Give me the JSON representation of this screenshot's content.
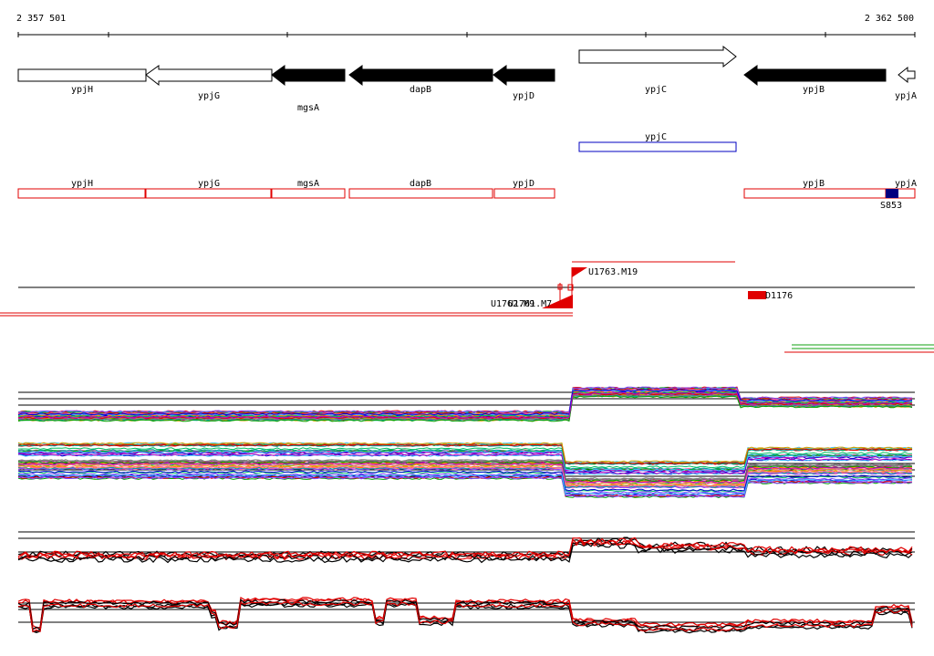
{
  "coordinates": {
    "start": "2 357 501",
    "end": "2 362 500"
  },
  "genes": [
    {
      "name": "ypjH",
      "strand": "none",
      "fill": "white"
    },
    {
      "name": "ypjG",
      "strand": "-",
      "fill": "white"
    },
    {
      "name": "mgsA",
      "strand": "-",
      "fill": "black"
    },
    {
      "name": "dapB",
      "strand": "-",
      "fill": "black"
    },
    {
      "name": "ypjD",
      "strand": "-",
      "fill": "black"
    },
    {
      "name": "ypjC",
      "strand": "+",
      "fill": "white"
    },
    {
      "name": "ypjB",
      "strand": "-",
      "fill": "black"
    },
    {
      "name": "ypjA",
      "strand": "-",
      "fill": "white"
    }
  ],
  "blue_feature": {
    "name": "ypjC"
  },
  "red_features": [
    "ypjH",
    "ypjG",
    "mgsA",
    "dapB",
    "ypjD",
    "ypjB",
    "ypjA"
  ],
  "marker_label": "S853",
  "promoters": [
    {
      "name": "U1763.M19"
    },
    {
      "name": "U1762.M9"
    },
    {
      "name": "U1761.M7"
    },
    {
      "name": "D1176"
    }
  ],
  "colors": {
    "feature_red": "#e00000",
    "feature_blue": "#0000c0",
    "marker_navy": "#000080",
    "track_green": "#10a010"
  }
}
